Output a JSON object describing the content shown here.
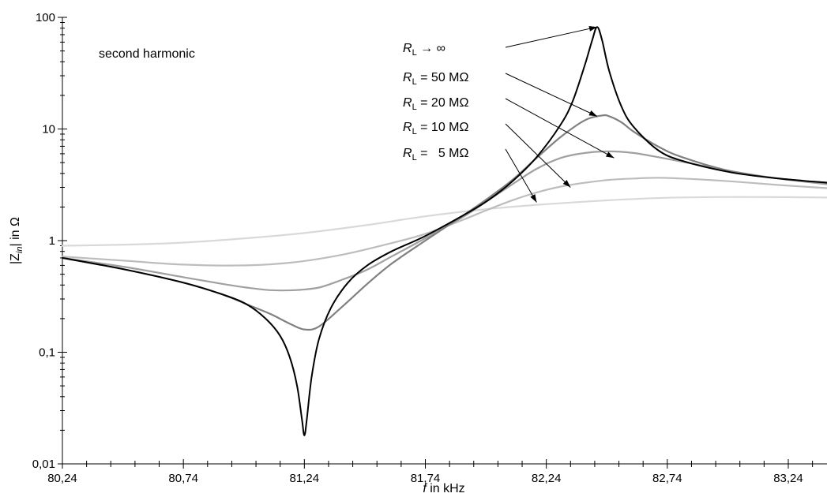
{
  "chart_data": {
    "type": "line",
    "title": "",
    "annotation": "second harmonic",
    "xlabel": {
      "italic": "f",
      "rest": " in kHz"
    },
    "ylabel": {
      "pre": "|Z",
      "sub": "in",
      "post": "| in Ω"
    },
    "xlim": [
      80.24,
      83.4
    ],
    "ylim": [
      0.01,
      100
    ],
    "yscale": "log",
    "grid": false,
    "xticks": [
      {
        "value": 80.24,
        "label": "80,24"
      },
      {
        "value": 80.74,
        "label": "80,74"
      },
      {
        "value": 81.24,
        "label": "81,24"
      },
      {
        "value": 81.74,
        "label": "81,74"
      },
      {
        "value": 82.24,
        "label": "82,24"
      },
      {
        "value": 82.74,
        "label": "82,74"
      },
      {
        "value": 83.24,
        "label": "83,24"
      }
    ],
    "yticks": [
      {
        "value": 0.01,
        "label": "0,01"
      },
      {
        "value": 0.1,
        "label": "0,1"
      },
      {
        "value": 1,
        "label": "1"
      },
      {
        "value": 10,
        "label": "10"
      },
      {
        "value": 100,
        "label": "100"
      }
    ],
    "series": [
      {
        "name": "RL → ∞",
        "label": {
          "sub": "L",
          "rest": " → ∞"
        },
        "color": "#000000",
        "x": [
          80.24,
          80.5,
          80.74,
          80.9,
          81.0,
          81.08,
          81.14,
          81.18,
          81.21,
          81.23,
          81.24,
          81.25,
          81.27,
          81.3,
          81.35,
          81.42,
          81.5,
          81.6,
          81.74,
          81.9,
          82.0,
          82.1,
          82.2,
          82.3,
          82.35,
          82.4,
          82.43,
          82.45,
          82.47,
          82.5,
          82.55,
          82.6,
          82.7,
          82.8,
          83.0,
          83.2,
          83.4
        ],
        "y": [
          0.7,
          0.55,
          0.42,
          0.33,
          0.27,
          0.2,
          0.14,
          0.09,
          0.05,
          0.025,
          0.018,
          0.025,
          0.06,
          0.13,
          0.25,
          0.42,
          0.6,
          0.8,
          1.1,
          1.7,
          2.3,
          3.4,
          5.6,
          11,
          18,
          38,
          63,
          82,
          63,
          33,
          16,
          10.5,
          6.5,
          5.2,
          4.1,
          3.6,
          3.3
        ]
      },
      {
        "name": "RL = 50 MΩ",
        "label": {
          "sub": "L",
          "rest": " = 50 MΩ"
        },
        "color": "#808080",
        "x": [
          80.24,
          80.5,
          80.74,
          80.9,
          81.0,
          81.1,
          81.18,
          81.24,
          81.3,
          81.4,
          81.5,
          81.6,
          81.74,
          81.9,
          82.0,
          82.1,
          82.2,
          82.3,
          82.4,
          82.47,
          82.5,
          82.55,
          82.6,
          82.7,
          82.8,
          83.0,
          83.2,
          83.4
        ],
        "y": [
          0.7,
          0.55,
          0.42,
          0.33,
          0.27,
          0.22,
          0.18,
          0.16,
          0.17,
          0.26,
          0.41,
          0.62,
          1.0,
          1.7,
          2.4,
          3.5,
          5.5,
          8.5,
          12,
          13.2,
          13,
          11.5,
          9.5,
          7,
          5.6,
          4.2,
          3.6,
          3.3
        ]
      },
      {
        "name": "RL = 20 MΩ",
        "label": {
          "sub": "L",
          "rest": " = 20 MΩ"
        },
        "color": "#a0a0a0",
        "x": [
          80.24,
          80.5,
          80.74,
          80.9,
          81.0,
          81.1,
          81.2,
          81.3,
          81.4,
          81.5,
          81.6,
          81.74,
          81.9,
          82.0,
          82.1,
          82.2,
          82.3,
          82.4,
          82.5,
          82.6,
          82.7,
          82.8,
          83.0,
          83.2,
          83.4
        ],
        "y": [
          0.7,
          0.58,
          0.47,
          0.41,
          0.38,
          0.36,
          0.36,
          0.38,
          0.45,
          0.55,
          0.72,
          1.05,
          1.65,
          2.3,
          3.2,
          4.4,
          5.5,
          6.1,
          6.3,
          6.1,
          5.6,
          5.1,
          4.2,
          3.6,
          3.2
        ]
      },
      {
        "name": "RL = 10 MΩ",
        "label": {
          "sub": "L",
          "rest": " = 10 MΩ"
        },
        "color": "#bdbdbd",
        "x": [
          80.24,
          80.5,
          80.74,
          81.0,
          81.2,
          81.4,
          81.6,
          81.74,
          81.9,
          82.0,
          82.1,
          82.2,
          82.3,
          82.4,
          82.5,
          82.6,
          82.7,
          82.8,
          83.0,
          83.2,
          83.4
        ],
        "y": [
          0.72,
          0.66,
          0.61,
          0.6,
          0.64,
          0.75,
          0.95,
          1.15,
          1.55,
          1.9,
          2.3,
          2.7,
          3.05,
          3.3,
          3.5,
          3.6,
          3.65,
          3.6,
          3.4,
          3.15,
          2.95
        ]
      },
      {
        "name": "RL = 5 MΩ",
        "label": {
          "sub": "L",
          "rest": " =   5 MΩ"
        },
        "color": "#d9d9d9",
        "x": [
          80.24,
          80.5,
          80.74,
          81.0,
          81.24,
          81.5,
          81.74,
          82.0,
          82.24,
          82.5,
          82.74,
          83.0,
          83.24,
          83.4
        ],
        "y": [
          0.9,
          0.92,
          0.96,
          1.05,
          1.17,
          1.38,
          1.65,
          1.92,
          2.12,
          2.3,
          2.42,
          2.46,
          2.45,
          2.43
        ]
      }
    ],
    "arrows": [
      {
        "series": 0,
        "to": [
          82.45,
          82
        ]
      },
      {
        "series": 1,
        "to": [
          82.45,
          13
        ]
      },
      {
        "series": 2,
        "to": [
          82.52,
          5.5
        ]
      },
      {
        "series": 3,
        "to": [
          82.34,
          3.0
        ]
      },
      {
        "series": 4,
        "to": [
          82.2,
          2.2
        ]
      }
    ]
  }
}
